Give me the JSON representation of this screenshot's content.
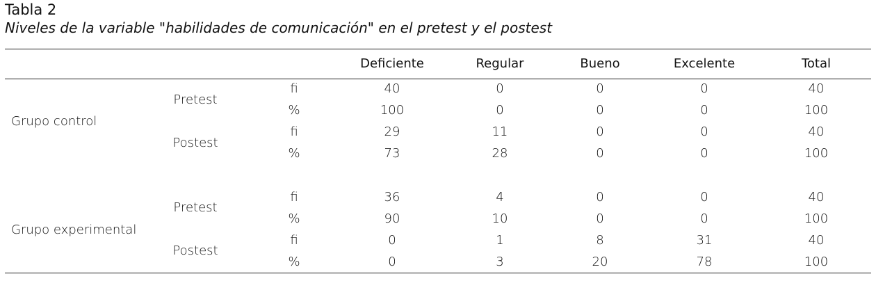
{
  "caption": {
    "label": "Tabla 2",
    "title": "Niveles de la variable \"habilidades de comunicación\" en el pretest y el postest"
  },
  "table": {
    "headers": [
      "Deficiente",
      "Regular",
      "Bueno",
      "Excelente",
      "Total"
    ],
    "groups": [
      {
        "name": "Grupo control",
        "phases": [
          {
            "name": "Pretest",
            "rows": [
              {
                "stat": "fi",
                "values": [
                  "40",
                  "0",
                  "0",
                  "0",
                  "40"
                ]
              },
              {
                "stat": "%",
                "values": [
                  "100",
                  "0",
                  "0",
                  "0",
                  "100"
                ]
              }
            ]
          },
          {
            "name": "Postest",
            "rows": [
              {
                "stat": "fi",
                "values": [
                  "29",
                  "11",
                  "0",
                  "0",
                  "40"
                ]
              },
              {
                "stat": "%",
                "values": [
                  "73",
                  "28",
                  "0",
                  "0",
                  "100"
                ]
              }
            ]
          }
        ]
      },
      {
        "name": "Grupo experimental",
        "phases": [
          {
            "name": "Pretest",
            "rows": [
              {
                "stat": "fi",
                "values": [
                  "36",
                  "4",
                  "0",
                  "0",
                  "40"
                ]
              },
              {
                "stat": "%",
                "values": [
                  "90",
                  "10",
                  "0",
                  "0",
                  "100"
                ]
              }
            ]
          },
          {
            "name": "Postest",
            "rows": [
              {
                "stat": "fi",
                "values": [
                  "0",
                  "1",
                  "8",
                  "31",
                  "40"
                ]
              },
              {
                "stat": "%",
                "values": [
                  "0",
                  "3",
                  "20",
                  "78",
                  "100"
                ]
              }
            ]
          }
        ]
      }
    ]
  }
}
